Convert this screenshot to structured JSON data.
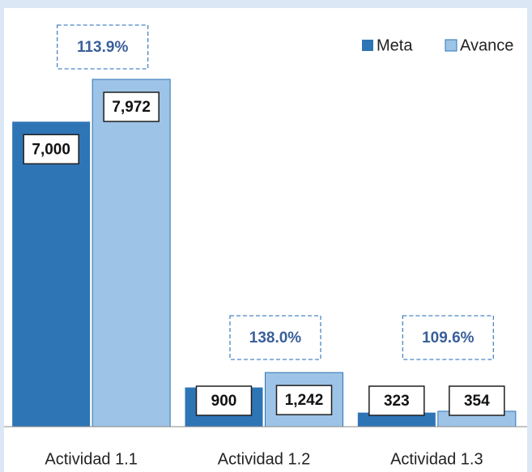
{
  "chart_data": {
    "type": "bar",
    "categories": [
      "Actividad 1.1",
      "Actividad 1.2",
      "Actividad 1.3"
    ],
    "series": [
      {
        "name": "Meta",
        "color": "#2e75b6",
        "values": [
          7000,
          900,
          323
        ],
        "value_labels": [
          "7,000",
          "900",
          "323"
        ]
      },
      {
        "name": "Avance",
        "color": "#9dc3e6",
        "values": [
          7972,
          1242,
          354
        ],
        "value_labels": [
          "7,972",
          "1,242",
          "354"
        ]
      }
    ],
    "annotations": [
      "113.9%",
      "138.0%",
      "109.6%"
    ],
    "legend": "upper right"
  }
}
